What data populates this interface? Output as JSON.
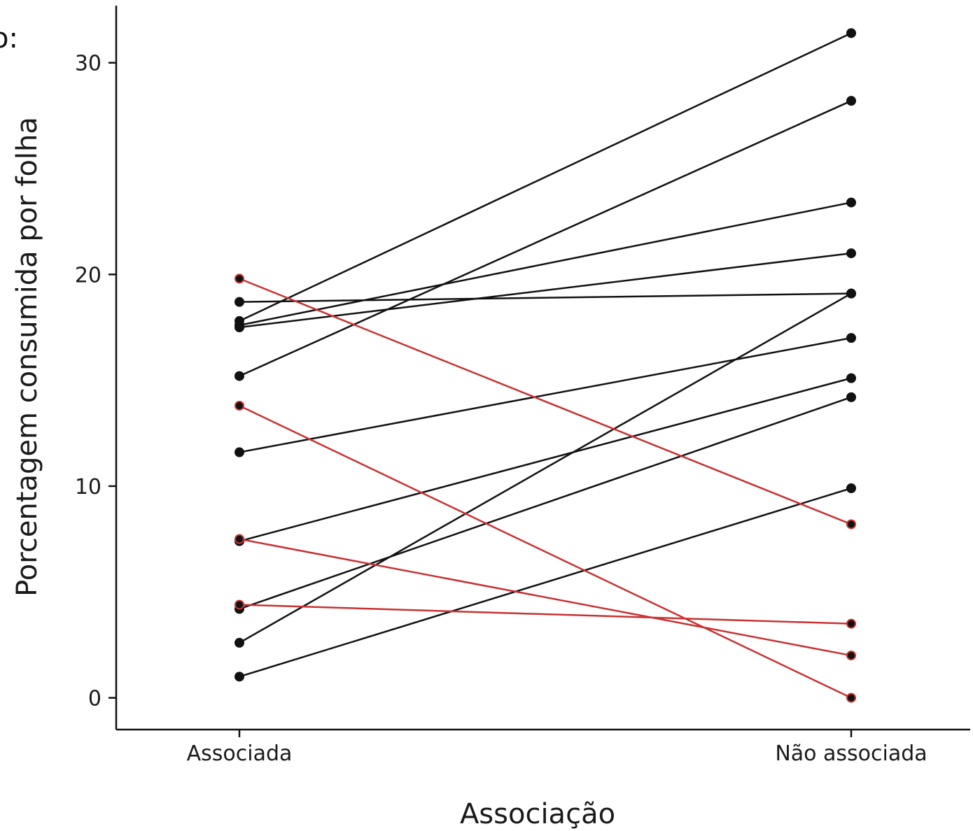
{
  "legend_fragment": "o:",
  "chart_data": {
    "type": "line",
    "title": "",
    "xlabel": "Associação",
    "ylabel": "Porcentagem consumida por folha",
    "categories": [
      "Associada",
      "Não associada"
    ],
    "yticks": [
      0,
      10,
      20,
      30
    ],
    "ylim": [
      -1.5,
      32.7
    ],
    "grid": false,
    "colors": {
      "increase": "#111111",
      "decrease": "#c83232"
    },
    "pairs": [
      {
        "values": [
          17.8,
          31.4
        ],
        "group": "increase"
      },
      {
        "values": [
          15.2,
          28.2
        ],
        "group": "increase"
      },
      {
        "values": [
          17.6,
          23.4
        ],
        "group": "increase"
      },
      {
        "values": [
          17.5,
          21.0
        ],
        "group": "increase"
      },
      {
        "values": [
          18.7,
          19.1
        ],
        "group": "increase"
      },
      {
        "values": [
          11.6,
          17.0
        ],
        "group": "increase"
      },
      {
        "values": [
          7.4,
          15.1
        ],
        "group": "increase"
      },
      {
        "values": [
          4.2,
          14.2
        ],
        "group": "increase"
      },
      {
        "values": [
          2.6,
          19.1
        ],
        "group": "increase"
      },
      {
        "values": [
          1.0,
          9.9
        ],
        "group": "increase"
      },
      {
        "values": [
          19.8,
          8.2
        ],
        "group": "decrease"
      },
      {
        "values": [
          13.8,
          0.0
        ],
        "group": "decrease"
      },
      {
        "values": [
          7.5,
          2.0
        ],
        "group": "decrease"
      },
      {
        "values": [
          4.4,
          3.5
        ],
        "group": "decrease"
      }
    ]
  }
}
